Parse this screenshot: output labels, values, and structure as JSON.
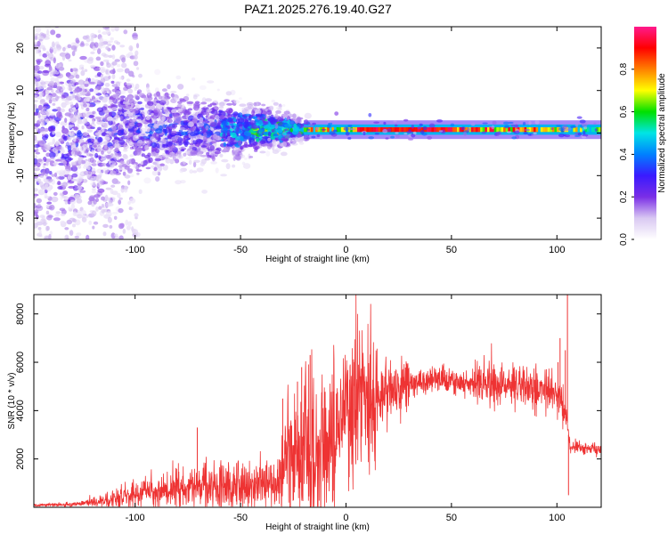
{
  "figure_title": "PAZ1.2025.276.19.40.G27",
  "chart_data": [
    {
      "type": "heatmap",
      "xlabel": "Height of straight line (km)",
      "ylabel": "Frequency (Hz)",
      "xlim": [
        -148,
        121
      ],
      "ylim": [
        -25,
        25
      ],
      "x_ticks": [
        -100,
        -50,
        0,
        50,
        100
      ],
      "y_ticks": [
        -20,
        -10,
        0,
        10,
        20
      ],
      "colorbar": {
        "label": "Normalized spectral amplitude",
        "range": [
          0,
          1
        ],
        "ticks": [
          0.0,
          0.2,
          0.4,
          0.6,
          0.8
        ],
        "colors": [
          "#ffffff",
          "#d9c8f2",
          "#7a2ee6",
          "#3a1aff",
          "#0080ff",
          "#00e5e5",
          "#00e000",
          "#ffff00",
          "#ff8000",
          "#ff0000",
          "#ff1a8c"
        ]
      },
      "structure": {
        "line_frequency_hz": 0.8,
        "steady_tone_from_km": -20,
        "scatter_envelope_hz": [
          [
            -148,
            25
          ],
          [
            -120,
            22
          ],
          [
            -100,
            10
          ],
          [
            -75,
            7
          ],
          [
            -55,
            6
          ],
          [
            -40,
            5
          ],
          [
            -30,
            4
          ],
          [
            -20,
            2
          ]
        ]
      }
    },
    {
      "type": "line",
      "xlabel": "Height of straight line (km)",
      "ylabel": "SNR (10 * v/v)",
      "xlim": [
        -148,
        121
      ],
      "ylim": [
        0,
        8800
      ],
      "x_ticks": [
        -100,
        -50,
        0,
        50,
        100
      ],
      "y_ticks": [
        2000,
        4000,
        6000,
        8000
      ],
      "line_color": "#ee3333",
      "envelope": [
        [
          -148,
          80
        ],
        [
          -130,
          120
        ],
        [
          -115,
          250
        ],
        [
          -100,
          550
        ],
        [
          -80,
          800
        ],
        [
          -60,
          900
        ],
        [
          -45,
          950
        ],
        [
          -32,
          1000
        ],
        [
          -28,
          1900
        ],
        [
          -20,
          2200
        ],
        [
          -15,
          2100
        ],
        [
          -10,
          2200
        ],
        [
          -5,
          3600
        ],
        [
          0,
          4000
        ],
        [
          10,
          4200
        ],
        [
          15,
          4400
        ],
        [
          20,
          4800
        ],
        [
          30,
          5150
        ],
        [
          45,
          5300
        ],
        [
          60,
          5200
        ],
        [
          70,
          5100
        ],
        [
          80,
          5000
        ],
        [
          95,
          4900
        ],
        [
          102,
          4600
        ],
        [
          105,
          3500
        ],
        [
          106,
          2500
        ],
        [
          110,
          2450
        ],
        [
          121,
          2400
        ]
      ],
      "spikes": [
        {
          "x": -70.5,
          "y": 3300
        },
        {
          "x": -23,
          "y": 5200
        },
        {
          "x": -30,
          "y": 4500
        },
        {
          "x": -17,
          "y": 6300
        },
        {
          "x": -21,
          "y": 5800
        },
        {
          "x": 100.5,
          "y": 6000
        },
        {
          "x": 104,
          "y": 6500
        },
        {
          "x": 101.5,
          "y": 7000
        },
        {
          "x": 105,
          "y": 8800
        },
        {
          "x": 105.5,
          "y": 500
        }
      ]
    }
  ]
}
